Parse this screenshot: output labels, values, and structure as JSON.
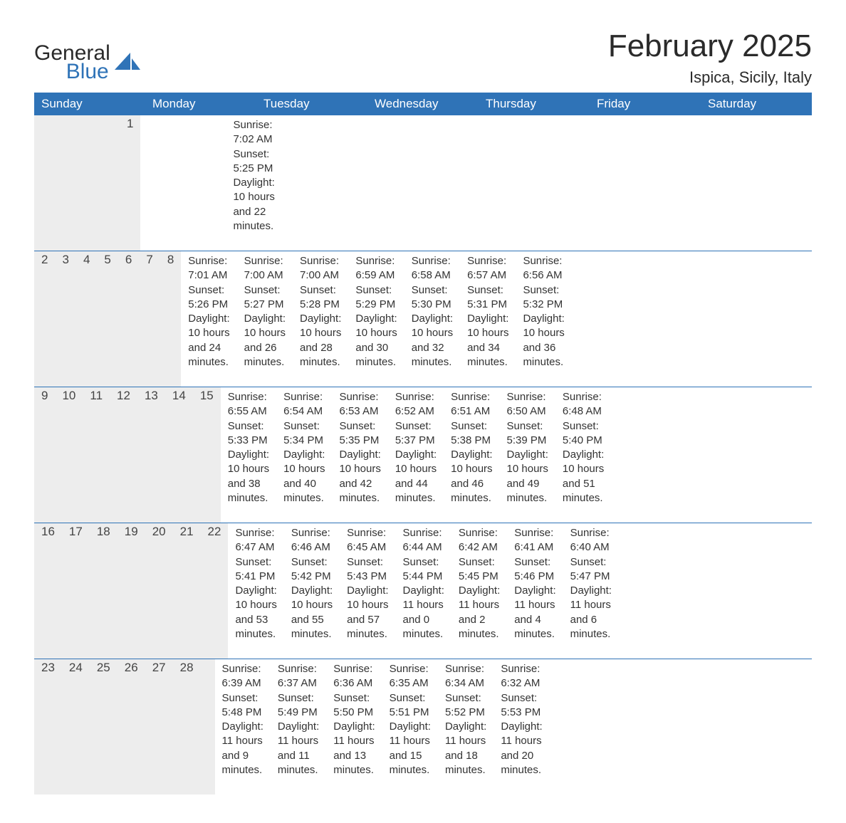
{
  "brand": {
    "name_top": "General",
    "name_bottom": "Blue",
    "logo_color": "#2f73b7"
  },
  "title": "February 2025",
  "location": "Ispica, Sicily, Italy",
  "columns": [
    "Sunday",
    "Monday",
    "Tuesday",
    "Wednesday",
    "Thursday",
    "Friday",
    "Saturday"
  ],
  "colors": {
    "header_bg": "#2f73b7",
    "header_text": "#ffffff",
    "daynum_bg": "#ededed",
    "text": "#333333",
    "rule": "#2f73b7",
    "page_bg": "#ffffff"
  },
  "fonts": {
    "title_pt": 33,
    "location_pt": 17,
    "header_pt": 13,
    "daynum_pt": 13,
    "body_pt": 11
  },
  "labels": {
    "sunrise": "Sunrise:",
    "sunset": "Sunset:",
    "daylight": "Daylight:"
  },
  "weeks": [
    [
      null,
      null,
      null,
      null,
      null,
      null,
      {
        "n": "1",
        "sunrise": "7:02 AM",
        "sunset": "5:25 PM",
        "daylight_a": "10 hours",
        "daylight_b": "and 22 minutes."
      }
    ],
    [
      {
        "n": "2",
        "sunrise": "7:01 AM",
        "sunset": "5:26 PM",
        "daylight_a": "10 hours",
        "daylight_b": "and 24 minutes."
      },
      {
        "n": "3",
        "sunrise": "7:00 AM",
        "sunset": "5:27 PM",
        "daylight_a": "10 hours",
        "daylight_b": "and 26 minutes."
      },
      {
        "n": "4",
        "sunrise": "7:00 AM",
        "sunset": "5:28 PM",
        "daylight_a": "10 hours",
        "daylight_b": "and 28 minutes."
      },
      {
        "n": "5",
        "sunrise": "6:59 AM",
        "sunset": "5:29 PM",
        "daylight_a": "10 hours",
        "daylight_b": "and 30 minutes."
      },
      {
        "n": "6",
        "sunrise": "6:58 AM",
        "sunset": "5:30 PM",
        "daylight_a": "10 hours",
        "daylight_b": "and 32 minutes."
      },
      {
        "n": "7",
        "sunrise": "6:57 AM",
        "sunset": "5:31 PM",
        "daylight_a": "10 hours",
        "daylight_b": "and 34 minutes."
      },
      {
        "n": "8",
        "sunrise": "6:56 AM",
        "sunset": "5:32 PM",
        "daylight_a": "10 hours",
        "daylight_b": "and 36 minutes."
      }
    ],
    [
      {
        "n": "9",
        "sunrise": "6:55 AM",
        "sunset": "5:33 PM",
        "daylight_a": "10 hours",
        "daylight_b": "and 38 minutes."
      },
      {
        "n": "10",
        "sunrise": "6:54 AM",
        "sunset": "5:34 PM",
        "daylight_a": "10 hours",
        "daylight_b": "and 40 minutes."
      },
      {
        "n": "11",
        "sunrise": "6:53 AM",
        "sunset": "5:35 PM",
        "daylight_a": "10 hours",
        "daylight_b": "and 42 minutes."
      },
      {
        "n": "12",
        "sunrise": "6:52 AM",
        "sunset": "5:37 PM",
        "daylight_a": "10 hours",
        "daylight_b": "and 44 minutes."
      },
      {
        "n": "13",
        "sunrise": "6:51 AM",
        "sunset": "5:38 PM",
        "daylight_a": "10 hours",
        "daylight_b": "and 46 minutes."
      },
      {
        "n": "14",
        "sunrise": "6:50 AM",
        "sunset": "5:39 PM",
        "daylight_a": "10 hours",
        "daylight_b": "and 49 minutes."
      },
      {
        "n": "15",
        "sunrise": "6:48 AM",
        "sunset": "5:40 PM",
        "daylight_a": "10 hours",
        "daylight_b": "and 51 minutes."
      }
    ],
    [
      {
        "n": "16",
        "sunrise": "6:47 AM",
        "sunset": "5:41 PM",
        "daylight_a": "10 hours",
        "daylight_b": "and 53 minutes."
      },
      {
        "n": "17",
        "sunrise": "6:46 AM",
        "sunset": "5:42 PM",
        "daylight_a": "10 hours",
        "daylight_b": "and 55 minutes."
      },
      {
        "n": "18",
        "sunrise": "6:45 AM",
        "sunset": "5:43 PM",
        "daylight_a": "10 hours",
        "daylight_b": "and 57 minutes."
      },
      {
        "n": "19",
        "sunrise": "6:44 AM",
        "sunset": "5:44 PM",
        "daylight_a": "11 hours",
        "daylight_b": "and 0 minutes."
      },
      {
        "n": "20",
        "sunrise": "6:42 AM",
        "sunset": "5:45 PM",
        "daylight_a": "11 hours",
        "daylight_b": "and 2 minutes."
      },
      {
        "n": "21",
        "sunrise": "6:41 AM",
        "sunset": "5:46 PM",
        "daylight_a": "11 hours",
        "daylight_b": "and 4 minutes."
      },
      {
        "n": "22",
        "sunrise": "6:40 AM",
        "sunset": "5:47 PM",
        "daylight_a": "11 hours",
        "daylight_b": "and 6 minutes."
      }
    ],
    [
      {
        "n": "23",
        "sunrise": "6:39 AM",
        "sunset": "5:48 PM",
        "daylight_a": "11 hours",
        "daylight_b": "and 9 minutes."
      },
      {
        "n": "24",
        "sunrise": "6:37 AM",
        "sunset": "5:49 PM",
        "daylight_a": "11 hours",
        "daylight_b": "and 11 minutes."
      },
      {
        "n": "25",
        "sunrise": "6:36 AM",
        "sunset": "5:50 PM",
        "daylight_a": "11 hours",
        "daylight_b": "and 13 minutes."
      },
      {
        "n": "26",
        "sunrise": "6:35 AM",
        "sunset": "5:51 PM",
        "daylight_a": "11 hours",
        "daylight_b": "and 15 minutes."
      },
      {
        "n": "27",
        "sunrise": "6:34 AM",
        "sunset": "5:52 PM",
        "daylight_a": "11 hours",
        "daylight_b": "and 18 minutes."
      },
      {
        "n": "28",
        "sunrise": "6:32 AM",
        "sunset": "5:53 PM",
        "daylight_a": "11 hours",
        "daylight_b": "and 20 minutes."
      },
      null
    ]
  ]
}
